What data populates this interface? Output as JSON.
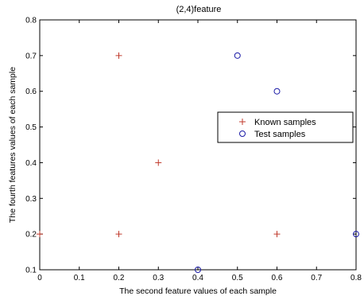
{
  "chart_data": {
    "type": "scatter",
    "title": "(2,4)feature",
    "xlabel": "The second  feature values of each sample",
    "ylabel": "The fourth features values of each sample",
    "xlim": [
      0,
      0.8
    ],
    "ylim": [
      0.1,
      0.8
    ],
    "xticks": [
      0,
      0.1,
      0.2,
      0.3,
      0.4,
      0.5,
      0.6,
      0.7,
      0.8
    ],
    "xtick_labels": [
      "0",
      "0.1",
      "0.2",
      "0.3",
      "0.4",
      "0.5",
      "0.6",
      "0.7",
      "0.8"
    ],
    "yticks": [
      0.1,
      0.2,
      0.3,
      0.4,
      0.5,
      0.6,
      0.7,
      0.8
    ],
    "ytick_labels": [
      "0.1",
      "0.2",
      "0.3",
      "0.4",
      "0.5",
      "0.6",
      "0.7",
      "0.8"
    ],
    "grid": false,
    "legend_position": "right",
    "series": [
      {
        "name": "Known samples",
        "marker": "plus",
        "color": "#c0392b",
        "points": [
          {
            "x": 0,
            "y": 0.2
          },
          {
            "x": 0.2,
            "y": 0.7
          },
          {
            "x": 0.2,
            "y": 0.2
          },
          {
            "x": 0.3,
            "y": 0.4
          },
          {
            "x": 0.6,
            "y": 0.2
          }
        ]
      },
      {
        "name": "Test samples",
        "marker": "circle",
        "color": "#1a1aa6",
        "points": [
          {
            "x": 0.4,
            "y": 0.1
          },
          {
            "x": 0.5,
            "y": 0.7
          },
          {
            "x": 0.6,
            "y": 0.6
          },
          {
            "x": 0.8,
            "y": 0.2
          }
        ]
      }
    ]
  }
}
